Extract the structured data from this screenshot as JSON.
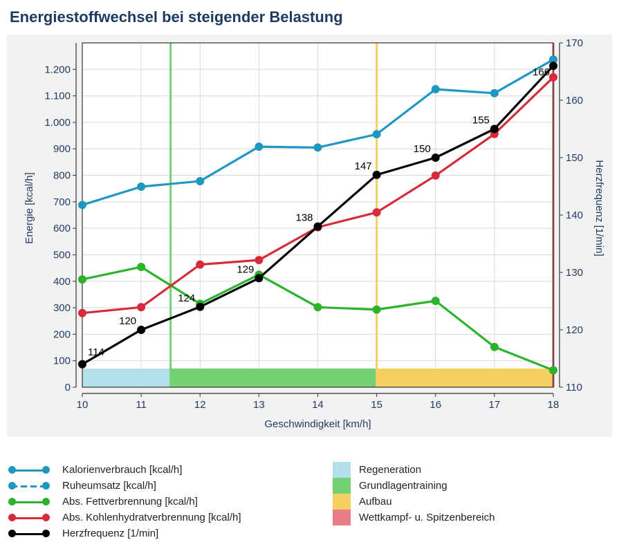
{
  "title": "Energiestoffwechsel bei steigender Belastung",
  "chart_data": {
    "type": "line",
    "title": "Energiestoffwechsel bei steigender Belastung",
    "xlabel": "Geschwindigkeit [km/h]",
    "ylabel_left": "Energie [kcal/h]",
    "ylabel_right": "Herzfrequenz [1/min]",
    "x": [
      10,
      11,
      12,
      13,
      14,
      15,
      16,
      17,
      18
    ],
    "xlim": [
      10,
      18
    ],
    "ylim_left": [
      0,
      1300
    ],
    "ylim_right": [
      110,
      170
    ],
    "left_ticks": [
      0,
      100,
      200,
      300,
      400,
      500,
      600,
      700,
      800,
      900,
      1000,
      1100,
      1200
    ],
    "left_tick_labels": [
      "0",
      "100",
      "200",
      "300",
      "400",
      "500",
      "600",
      "700",
      "800",
      "900",
      "1.000",
      "1.100",
      "1.200"
    ],
    "right_ticks": [
      110,
      120,
      130,
      140,
      150,
      160,
      170
    ],
    "right_tick_labels": [
      "110",
      "120",
      "130",
      "140",
      "150",
      "160",
      "170"
    ],
    "series": [
      {
        "name": "Kalorienverbrauch [kcal/h]",
        "axis": "left",
        "color": "#1f97c1",
        "style": "solid",
        "values": [
          688,
          757,
          778,
          908,
          905,
          955,
          1125,
          1110,
          1237
        ]
      },
      {
        "name": "Abs. Fettverbrennung [kcal/h]",
        "axis": "left",
        "color": "#2bb32b",
        "style": "solid",
        "values": [
          407,
          454,
          315,
          425,
          302,
          293,
          326,
          152,
          64
        ]
      },
      {
        "name": "Abs. Kohlenhydratverbrennung [kcal/h]",
        "axis": "left",
        "color": "#d92a3a",
        "style": "solid",
        "values": [
          280,
          302,
          463,
          480,
          604,
          660,
          799,
          956,
          1170
        ]
      },
      {
        "name": "Herzfrequenz [1/min]",
        "axis": "right",
        "color": "#000000",
        "style": "solid",
        "values": [
          114,
          120,
          124,
          129,
          138,
          147,
          150,
          155,
          166
        ],
        "data_labels": [
          "114",
          "120",
          "124",
          "129",
          "138",
          "147",
          "150",
          "155",
          "166"
        ]
      }
    ],
    "vertical_lines": [
      {
        "x": 11.5,
        "color": "#72d172"
      },
      {
        "x": 15,
        "color": "#f5d061"
      },
      {
        "x": 18,
        "color": "#e06070"
      }
    ],
    "zones": [
      {
        "name": "Regeneration",
        "from": 10,
        "to": 11.5,
        "color": "#b3e0ea"
      },
      {
        "name": "Grundlagentraining",
        "from": 11.5,
        "to": 15,
        "color": "#72d172"
      },
      {
        "name": "Aufbau",
        "from": 15,
        "to": 18,
        "color": "#f5d061"
      }
    ]
  },
  "legend": {
    "lines": [
      {
        "label": "Kalorienverbrauch [kcal/h]",
        "color": "#1f97c1",
        "style": "solid"
      },
      {
        "label": "Ruheumsatz [kcal/h]",
        "color": "#1f97c1",
        "style": "dashed"
      },
      {
        "label": "Abs. Fettverbrennung [kcal/h]",
        "color": "#2bb32b",
        "style": "solid"
      },
      {
        "label": "Abs. Kohlenhydratverbrennung [kcal/h]",
        "color": "#d92a3a",
        "style": "solid"
      },
      {
        "label": "Herzfrequenz [1/min]",
        "color": "#000000",
        "style": "solid"
      }
    ],
    "zones": [
      {
        "label": "Regeneration",
        "color": "#b3e0ea"
      },
      {
        "label": "Grundlagentraining",
        "color": "#72d172"
      },
      {
        "label": "Aufbau",
        "color": "#f5d061"
      },
      {
        "label": "Wettkampf- u. Spitzenbereich",
        "color": "#e87c87"
      }
    ]
  }
}
